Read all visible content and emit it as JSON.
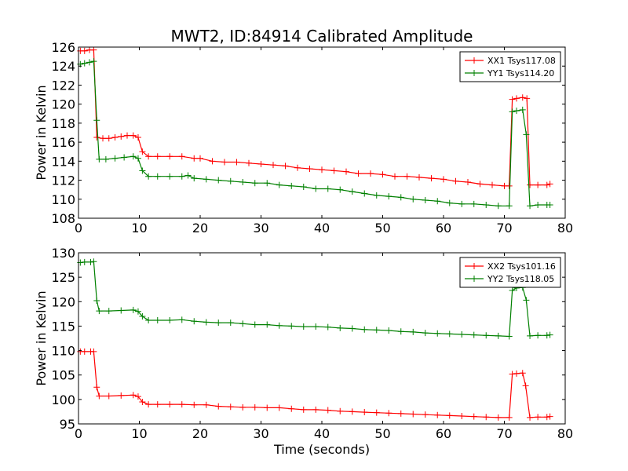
{
  "figure": {
    "title": "MWT2, ID:84914 Calibrated Amplitude"
  },
  "chart_data": [
    {
      "type": "line",
      "panel": "top",
      "title": "MWT2, ID:84914 Calibrated Amplitude",
      "xlabel": "",
      "ylabel": "Power in Kelvin",
      "xlim": [
        0,
        80
      ],
      "ylim": [
        108,
        126
      ],
      "x_ticks": [
        0,
        10,
        20,
        30,
        40,
        50,
        60,
        70,
        80
      ],
      "y_ticks": [
        108,
        110,
        112,
        114,
        116,
        118,
        120,
        122,
        124,
        126
      ],
      "grid": false,
      "legend_position": "top-right",
      "marker": "+",
      "series": [
        {
          "name": "XX1 Tsys117.08",
          "color": "#ff0000",
          "points": [
            [
              0.3,
              125.6
            ],
            [
              1.0,
              125.6
            ],
            [
              1.8,
              125.7
            ],
            [
              2.5,
              125.7
            ],
            [
              3.0,
              116.5
            ],
            [
              4.0,
              116.4
            ],
            [
              5.0,
              116.4
            ],
            [
              6.0,
              116.5
            ],
            [
              7.0,
              116.6
            ],
            [
              8.0,
              116.7
            ],
            [
              9.0,
              116.7
            ],
            [
              9.8,
              116.5
            ],
            [
              10.5,
              115.0
            ],
            [
              11.5,
              114.5
            ],
            [
              13.0,
              114.5
            ],
            [
              15.0,
              114.5
            ],
            [
              17.0,
              114.5
            ],
            [
              19.0,
              114.3
            ],
            [
              20.0,
              114.3
            ],
            [
              22.0,
              114.0
            ],
            [
              24.0,
              113.9
            ],
            [
              26.0,
              113.9
            ],
            [
              28.0,
              113.8
            ],
            [
              30.0,
              113.7
            ],
            [
              32.0,
              113.6
            ],
            [
              34.0,
              113.5
            ],
            [
              36.0,
              113.3
            ],
            [
              38.0,
              113.2
            ],
            [
              40.0,
              113.1
            ],
            [
              42.0,
              113.0
            ],
            [
              44.0,
              112.9
            ],
            [
              46.0,
              112.7
            ],
            [
              48.0,
              112.7
            ],
            [
              50.0,
              112.6
            ],
            [
              52.0,
              112.4
            ],
            [
              54.0,
              112.4
            ],
            [
              56.0,
              112.3
            ],
            [
              58.0,
              112.2
            ],
            [
              60.0,
              112.1
            ],
            [
              62.0,
              111.9
            ],
            [
              64.0,
              111.8
            ],
            [
              66.0,
              111.6
            ],
            [
              68.0,
              111.5
            ],
            [
              70.0,
              111.4
            ],
            [
              70.8,
              111.4
            ],
            [
              71.3,
              120.5
            ],
            [
              72.0,
              120.6
            ],
            [
              73.0,
              120.7
            ],
            [
              73.7,
              120.6
            ],
            [
              74.2,
              111.5
            ],
            [
              75.5,
              111.5
            ],
            [
              77.0,
              111.5
            ],
            [
              77.5,
              111.6
            ]
          ]
        },
        {
          "name": "YY1 Tsys114.20",
          "color": "#008000",
          "points": [
            [
              0.3,
              124.2
            ],
            [
              1.0,
              124.3
            ],
            [
              1.8,
              124.4
            ],
            [
              2.5,
              124.5
            ],
            [
              3.0,
              118.3
            ],
            [
              3.4,
              114.2
            ],
            [
              4.5,
              114.2
            ],
            [
              6.0,
              114.3
            ],
            [
              7.5,
              114.4
            ],
            [
              9.0,
              114.5
            ],
            [
              9.8,
              114.3
            ],
            [
              10.5,
              113.0
            ],
            [
              11.5,
              112.4
            ],
            [
              13.0,
              112.4
            ],
            [
              15.0,
              112.4
            ],
            [
              17.0,
              112.4
            ],
            [
              18.0,
              112.5
            ],
            [
              19.0,
              112.2
            ],
            [
              21.0,
              112.1
            ],
            [
              23.0,
              112.0
            ],
            [
              25.0,
              111.9
            ],
            [
              27.0,
              111.8
            ],
            [
              29.0,
              111.7
            ],
            [
              31.0,
              111.7
            ],
            [
              33.0,
              111.5
            ],
            [
              35.0,
              111.4
            ],
            [
              37.0,
              111.3
            ],
            [
              39.0,
              111.1
            ],
            [
              41.0,
              111.1
            ],
            [
              43.0,
              111.0
            ],
            [
              45.0,
              110.8
            ],
            [
              47.0,
              110.6
            ],
            [
              49.0,
              110.4
            ],
            [
              51.0,
              110.3
            ],
            [
              53.0,
              110.2
            ],
            [
              55.0,
              110.0
            ],
            [
              57.0,
              109.9
            ],
            [
              59.0,
              109.8
            ],
            [
              61.0,
              109.6
            ],
            [
              63.0,
              109.5
            ],
            [
              65.0,
              109.5
            ],
            [
              67.0,
              109.4
            ],
            [
              69.0,
              109.3
            ],
            [
              70.8,
              109.3
            ],
            [
              71.3,
              119.2
            ],
            [
              72.0,
              119.3
            ],
            [
              73.0,
              119.4
            ],
            [
              73.6,
              116.8
            ],
            [
              74.2,
              109.3
            ],
            [
              75.5,
              109.4
            ],
            [
              77.0,
              109.4
            ],
            [
              77.5,
              109.4
            ]
          ]
        }
      ]
    },
    {
      "type": "line",
      "panel": "bottom",
      "title": "",
      "xlabel": "Time (seconds)",
      "ylabel": "Power in Kelvin",
      "xlim": [
        0,
        80
      ],
      "ylim": [
        95,
        130
      ],
      "x_ticks": [
        0,
        10,
        20,
        30,
        40,
        50,
        60,
        70,
        80
      ],
      "y_ticks": [
        95,
        100,
        105,
        110,
        115,
        120,
        125,
        130
      ],
      "grid": false,
      "legend_position": "top-right",
      "marker": "+",
      "series": [
        {
          "name": "XX2 Tsys101.16",
          "color": "#ff0000",
          "points": [
            [
              0.3,
              109.8
            ],
            [
              1.0,
              109.8
            ],
            [
              2.0,
              109.8
            ],
            [
              2.5,
              109.8
            ],
            [
              3.0,
              102.5
            ],
            [
              3.4,
              100.7
            ],
            [
              5.0,
              100.7
            ],
            [
              7.0,
              100.8
            ],
            [
              9.0,
              100.9
            ],
            [
              9.8,
              100.6
            ],
            [
              10.5,
              99.5
            ],
            [
              11.5,
              99.0
            ],
            [
              13.0,
              99.0
            ],
            [
              15.0,
              99.0
            ],
            [
              17.0,
              99.0
            ],
            [
              19.0,
              98.9
            ],
            [
              21.0,
              98.9
            ],
            [
              23.0,
              98.6
            ],
            [
              25.0,
              98.5
            ],
            [
              27.0,
              98.4
            ],
            [
              29.0,
              98.4
            ],
            [
              31.0,
              98.3
            ],
            [
              33.0,
              98.3
            ],
            [
              35.0,
              98.1
            ],
            [
              37.0,
              97.9
            ],
            [
              39.0,
              97.9
            ],
            [
              41.0,
              97.8
            ],
            [
              43.0,
              97.6
            ],
            [
              45.0,
              97.5
            ],
            [
              47.0,
              97.4
            ],
            [
              49.0,
              97.3
            ],
            [
              51.0,
              97.2
            ],
            [
              53.0,
              97.1
            ],
            [
              55.0,
              97.0
            ],
            [
              57.0,
              96.9
            ],
            [
              59.0,
              96.8
            ],
            [
              61.0,
              96.7
            ],
            [
              63.0,
              96.6
            ],
            [
              65.0,
              96.5
            ],
            [
              67.0,
              96.4
            ],
            [
              69.0,
              96.3
            ],
            [
              70.8,
              96.3
            ],
            [
              71.3,
              105.2
            ],
            [
              72.0,
              105.3
            ],
            [
              73.0,
              105.4
            ],
            [
              73.5,
              102.8
            ],
            [
              74.2,
              96.3
            ],
            [
              75.5,
              96.4
            ],
            [
              77.0,
              96.4
            ],
            [
              77.5,
              96.5
            ]
          ]
        },
        {
          "name": "YY2 Tsys118.05",
          "color": "#008000",
          "points": [
            [
              0.3,
              128.0
            ],
            [
              1.0,
              128.1
            ],
            [
              2.0,
              128.1
            ],
            [
              2.5,
              128.2
            ],
            [
              3.0,
              120.2
            ],
            [
              3.4,
              118.1
            ],
            [
              5.0,
              118.1
            ],
            [
              7.0,
              118.2
            ],
            [
              9.0,
              118.3
            ],
            [
              9.8,
              118.0
            ],
            [
              10.5,
              117.0
            ],
            [
              11.5,
              116.2
            ],
            [
              13.0,
              116.2
            ],
            [
              15.0,
              116.2
            ],
            [
              17.0,
              116.3
            ],
            [
              19.0,
              116.0
            ],
            [
              21.0,
              115.8
            ],
            [
              23.0,
              115.7
            ],
            [
              25.0,
              115.7
            ],
            [
              27.0,
              115.5
            ],
            [
              29.0,
              115.3
            ],
            [
              31.0,
              115.3
            ],
            [
              33.0,
              115.1
            ],
            [
              35.0,
              115.0
            ],
            [
              37.0,
              114.9
            ],
            [
              39.0,
              114.9
            ],
            [
              41.0,
              114.8
            ],
            [
              43.0,
              114.6
            ],
            [
              45.0,
              114.5
            ],
            [
              47.0,
              114.3
            ],
            [
              49.0,
              114.2
            ],
            [
              51.0,
              114.1
            ],
            [
              53.0,
              113.9
            ],
            [
              55.0,
              113.8
            ],
            [
              57.0,
              113.6
            ],
            [
              59.0,
              113.5
            ],
            [
              61.0,
              113.4
            ],
            [
              63.0,
              113.3
            ],
            [
              65.0,
              113.2
            ],
            [
              67.0,
              113.1
            ],
            [
              69.0,
              113.0
            ],
            [
              70.8,
              112.9
            ],
            [
              71.3,
              122.3
            ],
            [
              72.0,
              122.8
            ],
            [
              73.0,
              122.9
            ],
            [
              73.6,
              120.3
            ],
            [
              74.2,
              113.0
            ],
            [
              75.5,
              113.1
            ],
            [
              77.0,
              113.1
            ],
            [
              77.5,
              113.2
            ]
          ]
        }
      ]
    }
  ]
}
